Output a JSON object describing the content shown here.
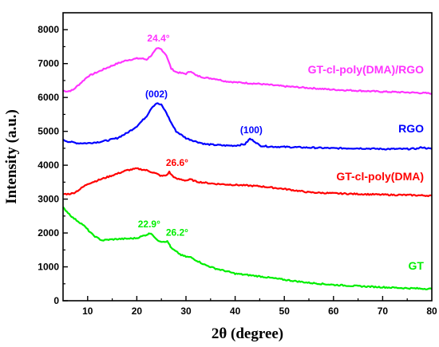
{
  "chart_data": {
    "type": "line",
    "xlabel": "2θ (degree)",
    "ylabel": "Intensity (a.u.)",
    "xlim": [
      5,
      80
    ],
    "ylim": [
      0,
      8500
    ],
    "xticks": [
      10,
      20,
      30,
      40,
      50,
      60,
      70,
      80
    ],
    "yticks": [
      0,
      1000,
      2000,
      3000,
      4000,
      5000,
      6000,
      7000,
      8000
    ],
    "grid": false,
    "series": [
      {
        "name": "GT-cl-poly(DMA)/RGO",
        "color": "#ff33ff",
        "points": [
          [
            5,
            6200
          ],
          [
            6,
            6180
          ],
          [
            7,
            6220
          ],
          [
            8,
            6350
          ],
          [
            9,
            6480
          ],
          [
            10,
            6620
          ],
          [
            12,
            6750
          ],
          [
            14,
            6880
          ],
          [
            16,
            7000
          ],
          [
            18,
            7100
          ],
          [
            20,
            7150
          ],
          [
            21,
            7150
          ],
          [
            22,
            7120
          ],
          [
            23,
            7250
          ],
          [
            24,
            7430
          ],
          [
            24.4,
            7450
          ],
          [
            25,
            7420
          ],
          [
            26,
            7250
          ],
          [
            27,
            6850
          ],
          [
            28,
            6750
          ],
          [
            29,
            6720
          ],
          [
            30,
            6700
          ],
          [
            31,
            6780
          ],
          [
            32,
            6650
          ],
          [
            34,
            6580
          ],
          [
            36,
            6550
          ],
          [
            38,
            6480
          ],
          [
            40,
            6450
          ],
          [
            45,
            6400
          ],
          [
            50,
            6330
          ],
          [
            55,
            6280
          ],
          [
            60,
            6230
          ],
          [
            65,
            6200
          ],
          [
            70,
            6170
          ],
          [
            75,
            6150
          ],
          [
            80,
            6120
          ]
        ]
      },
      {
        "name": "RGO",
        "color": "#0000ff",
        "points": [
          [
            5,
            4750
          ],
          [
            6,
            4700
          ],
          [
            8,
            4650
          ],
          [
            10,
            4650
          ],
          [
            12,
            4680
          ],
          [
            14,
            4730
          ],
          [
            16,
            4800
          ],
          [
            18,
            4950
          ],
          [
            20,
            5150
          ],
          [
            22,
            5450
          ],
          [
            23,
            5700
          ],
          [
            24,
            5830
          ],
          [
            25,
            5780
          ],
          [
            26,
            5550
          ],
          [
            27,
            5250
          ],
          [
            28,
            5000
          ],
          [
            30,
            4800
          ],
          [
            32,
            4700
          ],
          [
            34,
            4620
          ],
          [
            36,
            4600
          ],
          [
            38,
            4580
          ],
          [
            40,
            4580
          ],
          [
            42,
            4620
          ],
          [
            43,
            4780
          ],
          [
            44,
            4700
          ],
          [
            45,
            4580
          ],
          [
            47,
            4550
          ],
          [
            50,
            4540
          ],
          [
            55,
            4520
          ],
          [
            60,
            4500
          ],
          [
            65,
            4500
          ],
          [
            70,
            4480
          ],
          [
            75,
            4480
          ],
          [
            77,
            4490
          ],
          [
            78,
            4530
          ],
          [
            79,
            4500
          ],
          [
            80,
            4480
          ]
        ]
      },
      {
        "name": "GT-cl-poly(DMA)",
        "color": "#ff0000",
        "points": [
          [
            5,
            3150
          ],
          [
            6,
            3150
          ],
          [
            7,
            3170
          ],
          [
            8,
            3250
          ],
          [
            9,
            3350
          ],
          [
            10,
            3450
          ],
          [
            12,
            3550
          ],
          [
            14,
            3650
          ],
          [
            16,
            3750
          ],
          [
            18,
            3850
          ],
          [
            20,
            3900
          ],
          [
            22,
            3850
          ],
          [
            24,
            3750
          ],
          [
            25,
            3680
          ],
          [
            26,
            3700
          ],
          [
            26.6,
            3800
          ],
          [
            27,
            3720
          ],
          [
            28,
            3600
          ],
          [
            29,
            3580
          ],
          [
            30,
            3550
          ],
          [
            31,
            3580
          ],
          [
            32,
            3520
          ],
          [
            34,
            3480
          ],
          [
            36,
            3450
          ],
          [
            40,
            3420
          ],
          [
            45,
            3380
          ],
          [
            50,
            3300
          ],
          [
            55,
            3200
          ],
          [
            60,
            3170
          ],
          [
            65,
            3150
          ],
          [
            70,
            3130
          ],
          [
            75,
            3120
          ],
          [
            80,
            3100
          ]
        ]
      },
      {
        "name": "GT",
        "color": "#00ee00",
        "points": [
          [
            5,
            2750
          ],
          [
            6,
            2600
          ],
          [
            7,
            2450
          ],
          [
            8,
            2350
          ],
          [
            9,
            2250
          ],
          [
            10,
            2100
          ],
          [
            11,
            1950
          ],
          [
            12,
            1850
          ],
          [
            13,
            1780
          ],
          [
            14,
            1800
          ],
          [
            16,
            1820
          ],
          [
            18,
            1830
          ],
          [
            20,
            1850
          ],
          [
            21,
            1900
          ],
          [
            22,
            1950
          ],
          [
            22.9,
            2000
          ],
          [
            23.5,
            1900
          ],
          [
            24,
            1800
          ],
          [
            25,
            1750
          ],
          [
            26.2,
            1750
          ],
          [
            26.7,
            1650
          ],
          [
            27,
            1550
          ],
          [
            28,
            1450
          ],
          [
            29,
            1350
          ],
          [
            30,
            1300
          ],
          [
            31,
            1280
          ],
          [
            32,
            1200
          ],
          [
            34,
            1050
          ],
          [
            36,
            950
          ],
          [
            38,
            880
          ],
          [
            40,
            800
          ],
          [
            45,
            720
          ],
          [
            50,
            620
          ],
          [
            55,
            530
          ],
          [
            60,
            470
          ],
          [
            65,
            430
          ],
          [
            70,
            400
          ],
          [
            75,
            370
          ],
          [
            80,
            350
          ]
        ]
      }
    ],
    "annotations": [
      {
        "text": "24.4°",
        "x": 24.4,
        "y": 7650,
        "color": "#ff33ff"
      },
      {
        "text": "(002)",
        "x": 24,
        "y": 6000,
        "color": "#0000ff"
      },
      {
        "text": "(100)",
        "x": 43.3,
        "y": 4940,
        "color": "#0000ff"
      },
      {
        "text": "26.6°",
        "x": 28.2,
        "y": 3980,
        "color": "#ff0000"
      },
      {
        "text": "22.9°",
        "x": 22.5,
        "y": 2170,
        "color": "#00ee00"
      },
      {
        "text": "26.2°",
        "x": 28.2,
        "y": 1920,
        "color": "#00ee00"
      }
    ]
  }
}
